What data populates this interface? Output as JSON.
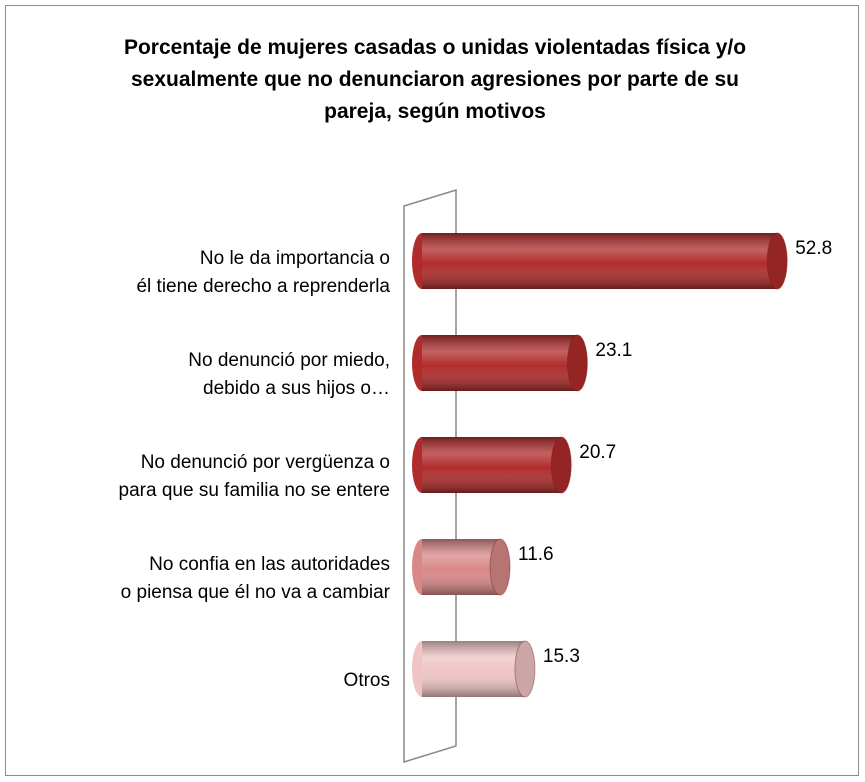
{
  "chart_data": {
    "type": "bar",
    "title": "Porcentaje de mujeres casadas o unidas violentadas física y/o sexualmente que no denunciaron agresiones por parte de su pareja, según motivos",
    "categories": [
      "No le da importancia o\nél tiene derecho a reprenderla",
      "No denunció por miedo,\ndebido a sus hijos o…",
      "No denunció por vergüenza o\npara que su familia no se entere",
      "No confia en las autoridades\no piensa que él no va a cambiar",
      "Otros"
    ],
    "values": [
      52.8,
      23.1,
      20.7,
      11.6,
      15.3
    ],
    "colors": [
      "#b02c2c",
      "#b02c2c",
      "#b02c2c",
      "#d98888",
      "#efc4c4"
    ],
    "xlim": [
      0,
      55
    ]
  }
}
